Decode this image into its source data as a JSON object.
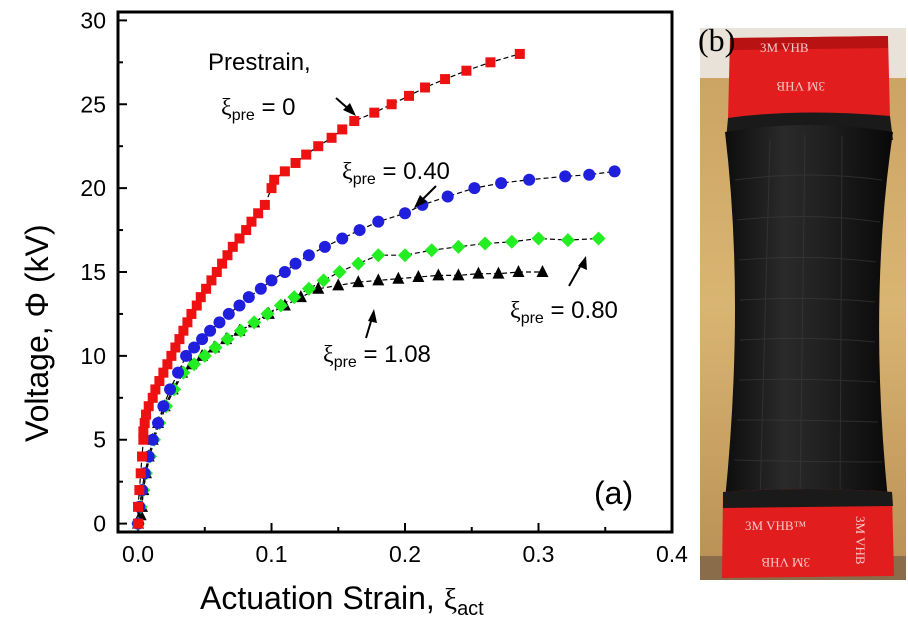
{
  "panel_a_label": "(a)",
  "panel_b_label": "(b)",
  "chart_data": {
    "type": "line",
    "xlabel": "Actuation Strain, ",
    "xlabel_symbol": "ξ",
    "xlabel_sub": "act",
    "ylabel": "Voltage, Φ (kV)",
    "xlim": [
      -0.015,
      0.4
    ],
    "ylim": [
      -0.5,
      30.5
    ],
    "xticks": [
      "0.0",
      "0.1",
      "0.2",
      "0.3",
      "0.4"
    ],
    "yticks": [
      "0",
      "5",
      "10",
      "15",
      "20",
      "25",
      "30"
    ],
    "series": [
      {
        "color": "#ee1111",
        "marker": "square",
        "points": [
          [
            0,
            0
          ],
          [
            0,
            1
          ],
          [
            0.001,
            2
          ],
          [
            0.002,
            3
          ],
          [
            0.003,
            4
          ],
          [
            0.004,
            5
          ],
          [
            0.004,
            5.5
          ],
          [
            0.005,
            6
          ],
          [
            0.006,
            6.5
          ],
          [
            0.008,
            7
          ],
          [
            0.011,
            7.5
          ],
          [
            0.013,
            8
          ],
          [
            0.016,
            8.5
          ],
          [
            0.019,
            9
          ],
          [
            0.022,
            9.5
          ],
          [
            0.025,
            10
          ],
          [
            0.028,
            10.5
          ],
          [
            0.031,
            11
          ],
          [
            0.034,
            11.5
          ],
          [
            0.037,
            12
          ],
          [
            0.04,
            12.5
          ],
          [
            0.044,
            13
          ],
          [
            0.047,
            13.5
          ],
          [
            0.051,
            14
          ],
          [
            0.055,
            14.5
          ],
          [
            0.059,
            15
          ],
          [
            0.063,
            15.5
          ],
          [
            0.067,
            16
          ],
          [
            0.071,
            16.5
          ],
          [
            0.076,
            17
          ],
          [
            0.081,
            17.5
          ],
          [
            0.085,
            18
          ],
          [
            0.09,
            18.5
          ],
          [
            0.095,
            19
          ],
          [
            0.1,
            20
          ],
          [
            0.102,
            20.5
          ],
          [
            0.11,
            21
          ],
          [
            0.118,
            21.5
          ],
          [
            0.126,
            22
          ],
          [
            0.135,
            22.5
          ],
          [
            0.145,
            23
          ],
          [
            0.153,
            23.5
          ],
          [
            0.162,
            24
          ],
          [
            0.177,
            24.5
          ],
          [
            0.19,
            25
          ],
          [
            0.203,
            25.5
          ],
          [
            0.215,
            26
          ],
          [
            0.23,
            26.5
          ],
          [
            0.246,
            27
          ],
          [
            0.264,
            27.5
          ],
          [
            0.286,
            28
          ]
        ]
      },
      {
        "color": "#1f1fdd",
        "marker": "circle",
        "points": [
          [
            0,
            0
          ],
          [
            0.001,
            1
          ],
          [
            0.003,
            2
          ],
          [
            0.005,
            3
          ],
          [
            0.008,
            4
          ],
          [
            0.011,
            5
          ],
          [
            0.015,
            6
          ],
          [
            0.019,
            7
          ],
          [
            0.024,
            8
          ],
          [
            0.03,
            9
          ],
          [
            0.036,
            10
          ],
          [
            0.042,
            10.5
          ],
          [
            0.048,
            11
          ],
          [
            0.054,
            11.5
          ],
          [
            0.061,
            12
          ],
          [
            0.068,
            12.5
          ],
          [
            0.076,
            13
          ],
          [
            0.083,
            13.5
          ],
          [
            0.092,
            14
          ],
          [
            0.1,
            14.5
          ],
          [
            0.11,
            15
          ],
          [
            0.118,
            15.5
          ],
          [
            0.128,
            16
          ],
          [
            0.14,
            16.5
          ],
          [
            0.153,
            17
          ],
          [
            0.166,
            17.5
          ],
          [
            0.18,
            18
          ],
          [
            0.2,
            18.5
          ],
          [
            0.213,
            19
          ],
          [
            0.232,
            19.5
          ],
          [
            0.252,
            20
          ],
          [
            0.272,
            20.3
          ],
          [
            0.293,
            20.5
          ],
          [
            0.32,
            20.7
          ],
          [
            0.338,
            20.8
          ],
          [
            0.357,
            21
          ]
        ]
      },
      {
        "color": "#22ee22",
        "marker": "diamond",
        "points": [
          [
            0,
            0
          ],
          [
            0.002,
            1
          ],
          [
            0.004,
            2
          ],
          [
            0.006,
            3
          ],
          [
            0.009,
            4
          ],
          [
            0.012,
            5
          ],
          [
            0.016,
            6
          ],
          [
            0.021,
            7
          ],
          [
            0.027,
            8
          ],
          [
            0.034,
            9
          ],
          [
            0.042,
            9.5
          ],
          [
            0.05,
            10
          ],
          [
            0.058,
            10.5
          ],
          [
            0.067,
            11
          ],
          [
            0.077,
            11.5
          ],
          [
            0.087,
            12
          ],
          [
            0.097,
            12.5
          ],
          [
            0.107,
            13
          ],
          [
            0.117,
            13.5
          ],
          [
            0.128,
            14
          ],
          [
            0.139,
            14.5
          ],
          [
            0.151,
            15
          ],
          [
            0.165,
            15.5
          ],
          [
            0.18,
            16
          ],
          [
            0.2,
            16
          ],
          [
            0.22,
            16.3
          ],
          [
            0.24,
            16.5
          ],
          [
            0.26,
            16.7
          ],
          [
            0.28,
            16.8
          ],
          [
            0.3,
            17
          ],
          [
            0.322,
            16.9
          ],
          [
            0.345,
            17
          ]
        ]
      },
      {
        "color": "#000000",
        "marker": "triangle",
        "points": [
          [
            0,
            0
          ],
          [
            0.002,
            0.5
          ],
          [
            0.003,
            1
          ],
          [
            0.004,
            2
          ],
          [
            0.006,
            3
          ],
          [
            0.008,
            4
          ],
          [
            0.011,
            5
          ],
          [
            0.015,
            6
          ],
          [
            0.02,
            7
          ],
          [
            0.026,
            8
          ],
          [
            0.033,
            9
          ],
          [
            0.04,
            9.5
          ],
          [
            0.048,
            10
          ],
          [
            0.057,
            10.5
          ],
          [
            0.066,
            11
          ],
          [
            0.076,
            11.5
          ],
          [
            0.087,
            12
          ],
          [
            0.098,
            12.5
          ],
          [
            0.11,
            13
          ],
          [
            0.122,
            13.5
          ],
          [
            0.135,
            14
          ],
          [
            0.15,
            14.2
          ],
          [
            0.165,
            14.4
          ],
          [
            0.18,
            14.5
          ],
          [
            0.195,
            14.6
          ],
          [
            0.21,
            14.7
          ],
          [
            0.225,
            14.8
          ],
          [
            0.24,
            14.8
          ],
          [
            0.255,
            14.9
          ],
          [
            0.27,
            14.9
          ],
          [
            0.285,
            15
          ],
          [
            0.303,
            15
          ]
        ]
      }
    ],
    "annotations": [
      {
        "line1": "Prestrain,",
        "symbol": "ξ",
        "sub": "pre",
        "text": " = 0"
      },
      {
        "symbol": "ξ",
        "sub": "pre",
        "text": " = 0.40"
      },
      {
        "symbol": "ξ",
        "sub": "pre",
        "text": " = 0.80"
      },
      {
        "symbol": "ξ",
        "sub": "pre",
        "text": " = 1.08"
      }
    ]
  },
  "photo": {
    "tape_top_text": "3M VHB",
    "tape_top_text_2": "3M VHB",
    "tape_bottom_text": "3M VHB™",
    "tape_bottom_text_2": "3M VHB",
    "tape_bottom_text_3": "3M VHB"
  }
}
